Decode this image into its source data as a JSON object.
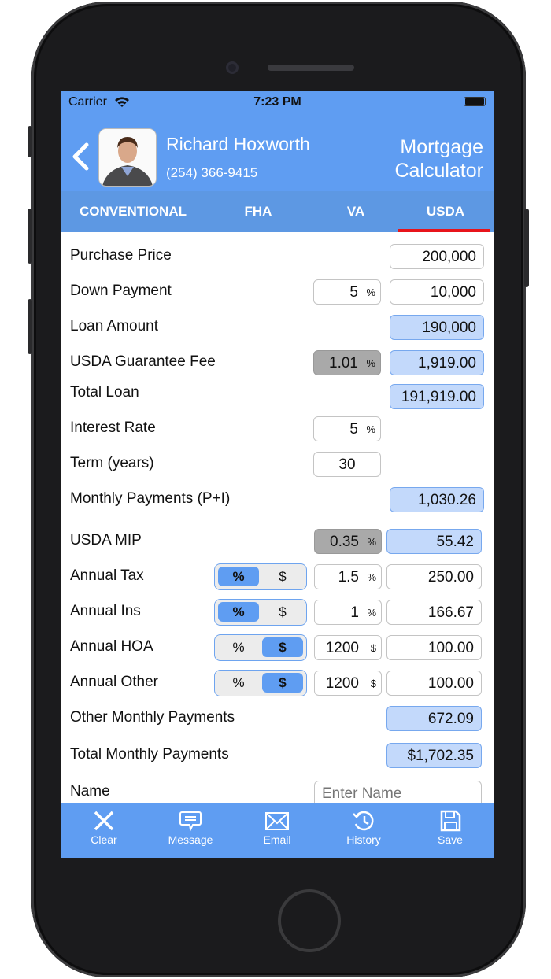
{
  "status": {
    "carrier": "Carrier",
    "time": "7:23 PM"
  },
  "header": {
    "name": "Richard Hoxworth",
    "phone": "(254) 366-9415",
    "title_line1": "Mortgage",
    "title_line2": "Calculator"
  },
  "tabs": [
    {
      "label": "CONVENTIONAL"
    },
    {
      "label": "FHA"
    },
    {
      "label": "VA"
    },
    {
      "label": "USDA",
      "selected": true
    }
  ],
  "accent_color": "#5f9df2",
  "tab_indicator_color": "#e8141b",
  "rows": [
    {
      "label": "Purchase Price",
      "value": "200,000",
      "value_style": "input"
    },
    {
      "label": "Down Payment",
      "rate": "5",
      "unit": "%",
      "value": "10,000",
      "value_style": "input"
    },
    {
      "label": "Loan Amount",
      "value": "190,000",
      "value_style": "calc"
    },
    {
      "label": "USDA Guarantee Fee",
      "rate": "1.01",
      "unit": "%",
      "rate_style": "gray",
      "value": "1,919.00",
      "value_style": "calc"
    },
    {
      "label": "Total Loan",
      "value": "191,919.00",
      "value_style": "calc"
    },
    {
      "label": "Interest Rate",
      "rate": "5",
      "unit": "%"
    },
    {
      "label": "Term (years)",
      "rate": "30"
    },
    {
      "label": "Monthly Payments (P+I)",
      "value": "1,030.26",
      "value_style": "calc"
    },
    {
      "label": "USDA MIP",
      "rate": "0.35",
      "unit": "%",
      "rate_style": "gray",
      "value": "55.42",
      "value_style": "calc"
    },
    {
      "label": "Annual Tax",
      "toggle": {
        "options": [
          "%",
          "$"
        ],
        "selected": "%"
      },
      "rate": "1.5",
      "unit": "%",
      "value": "250.00",
      "value_style": "input"
    },
    {
      "label": "Annual Ins",
      "toggle": {
        "options": [
          "%",
          "$"
        ],
        "selected": "%"
      },
      "rate": "1",
      "unit": "%",
      "value": "166.67",
      "value_style": "input"
    },
    {
      "label": "Annual HOA",
      "toggle": {
        "options": [
          "%",
          "$"
        ],
        "selected": "$"
      },
      "rate": "1200",
      "unit": "$",
      "value": "100.00",
      "value_style": "input"
    },
    {
      "label": "Annual Other",
      "toggle": {
        "options": [
          "%",
          "$"
        ],
        "selected": "$"
      },
      "rate": "1200",
      "unit": "$",
      "value": "100.00",
      "value_style": "input"
    },
    {
      "label": "Other Monthly Payments",
      "value": "672.09",
      "value_style": "calc"
    },
    {
      "label": "Total Monthly Payments",
      "value": "$1,702.35",
      "value_style": "calc"
    }
  ],
  "name_field": {
    "label": "Name",
    "placeholder": "Enter Name"
  },
  "bottom_bar": [
    {
      "label": "Clear",
      "icon": "close-icon"
    },
    {
      "label": "Message",
      "icon": "message-icon"
    },
    {
      "label": "Email",
      "icon": "email-icon"
    },
    {
      "label": "History",
      "icon": "history-icon"
    },
    {
      "label": "Save",
      "icon": "save-icon"
    }
  ]
}
